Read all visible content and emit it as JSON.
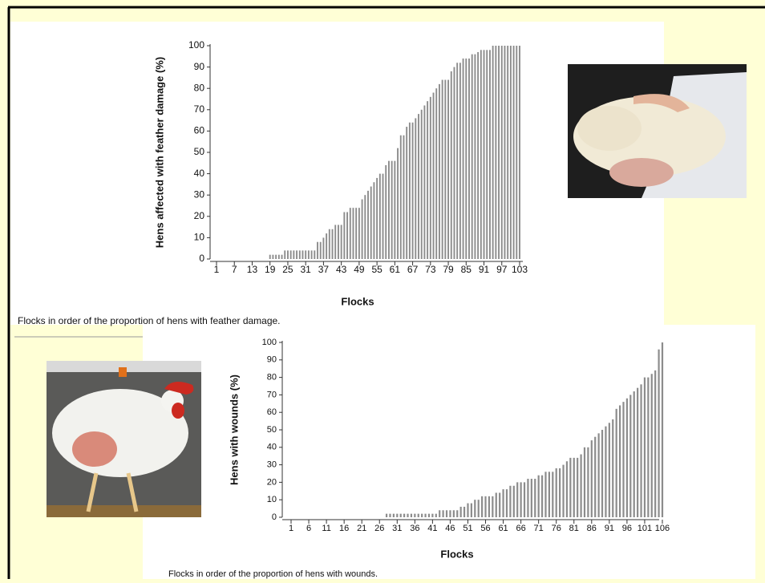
{
  "chart_data": [
    {
      "type": "bar",
      "ylabel": "Hens affected with feather damage (%)",
      "xlabel": "Flocks",
      "caption": "Flocks in order of the proportion of hens with feather damage.",
      "color": "#8c8c8c",
      "x": [
        1,
        2,
        3,
        4,
        5,
        6,
        7,
        8,
        9,
        10,
        11,
        12,
        13,
        14,
        15,
        16,
        17,
        18,
        19,
        20,
        21,
        22,
        23,
        24,
        25,
        26,
        27,
        28,
        29,
        30,
        31,
        32,
        33,
        34,
        35,
        36,
        37,
        38,
        39,
        40,
        41,
        42,
        43,
        44,
        45,
        46,
        47,
        48,
        49,
        50,
        51,
        52,
        53,
        54,
        55,
        56,
        57,
        58,
        59,
        60,
        61,
        62,
        63,
        64,
        65,
        66,
        67,
        68,
        69,
        70,
        71,
        72,
        73,
        74,
        75,
        76,
        77,
        78,
        79,
        80,
        81,
        82,
        83,
        84,
        85,
        86,
        87,
        88,
        89,
        90,
        91,
        92,
        93,
        94,
        95,
        96,
        97,
        98,
        99,
        100,
        101,
        102,
        103
      ],
      "values": [
        0,
        0,
        0,
        0,
        0,
        0,
        0,
        0,
        0,
        0,
        0,
        0,
        0,
        0,
        0,
        0,
        0,
        0,
        2,
        2,
        2,
        2,
        2,
        4,
        4,
        4,
        4,
        4,
        4,
        4,
        4,
        4,
        4,
        4,
        8,
        8,
        10,
        12,
        14,
        14,
        16,
        16,
        16,
        22,
        22,
        24,
        24,
        24,
        24,
        28,
        30,
        32,
        34,
        36,
        38,
        40,
        40,
        44,
        46,
        46,
        46,
        52,
        58,
        58,
        62,
        64,
        64,
        66,
        68,
        70,
        72,
        74,
        76,
        78,
        80,
        82,
        84,
        84,
        84,
        88,
        90,
        92,
        92,
        94,
        94,
        94,
        96,
        96,
        97,
        98,
        98,
        98,
        98,
        100,
        100,
        100,
        100,
        100,
        100,
        100,
        100,
        100,
        100
      ],
      "xlim": [
        0,
        104
      ],
      "xticks": [
        1,
        7,
        13,
        19,
        25,
        31,
        37,
        43,
        49,
        55,
        61,
        67,
        73,
        79,
        85,
        91,
        97,
        103
      ],
      "ylim": [
        0,
        100
      ],
      "yticks": [
        0,
        10,
        20,
        30,
        40,
        50,
        60,
        70,
        80,
        90,
        100
      ]
    },
    {
      "type": "bar",
      "ylabel": "Hens with wounds (%)",
      "xlabel": "Flocks",
      "caption": "Flocks in order of the proportion of hens with wounds.",
      "color": "#8c8c8c",
      "x": [
        1,
        2,
        3,
        4,
        5,
        6,
        7,
        8,
        9,
        10,
        11,
        12,
        13,
        14,
        15,
        16,
        17,
        18,
        19,
        20,
        21,
        22,
        23,
        24,
        25,
        26,
        27,
        28,
        29,
        30,
        31,
        32,
        33,
        34,
        35,
        36,
        37,
        38,
        39,
        40,
        41,
        42,
        43,
        44,
        45,
        46,
        47,
        48,
        49,
        50,
        51,
        52,
        53,
        54,
        55,
        56,
        57,
        58,
        59,
        60,
        61,
        62,
        63,
        64,
        65,
        66,
        67,
        68,
        69,
        70,
        71,
        72,
        73,
        74,
        75,
        76,
        77,
        78,
        79,
        80,
        81,
        82,
        83,
        84,
        85,
        86,
        87,
        88,
        89,
        90,
        91,
        92,
        93,
        94,
        95,
        96,
        97,
        98,
        99,
        100,
        101,
        102,
        103,
        104,
        105,
        106
      ],
      "values": [
        0,
        0,
        0,
        0,
        0,
        0,
        0,
        0,
        0,
        0,
        0,
        0,
        0,
        0,
        0,
        0,
        0,
        0,
        0,
        0,
        0,
        0,
        0,
        0,
        0,
        0,
        0,
        2,
        2,
        2,
        2,
        2,
        2,
        2,
        2,
        2,
        2,
        2,
        2,
        2,
        2,
        2,
        4,
        4,
        4,
        4,
        4,
        4,
        6,
        6,
        8,
        8,
        10,
        10,
        12,
        12,
        12,
        12,
        14,
        14,
        16,
        16,
        18,
        18,
        20,
        20,
        20,
        22,
        22,
        22,
        24,
        24,
        26,
        26,
        26,
        28,
        28,
        30,
        32,
        34,
        34,
        34,
        36,
        40,
        40,
        44,
        46,
        48,
        50,
        52,
        54,
        56,
        62,
        64,
        66,
        68,
        70,
        72,
        74,
        76,
        80,
        80,
        82,
        84,
        96,
        100
      ],
      "xlim": [
        0,
        107
      ],
      "xticks": [
        1,
        6,
        11,
        16,
        21,
        26,
        31,
        36,
        41,
        46,
        51,
        56,
        61,
        66,
        71,
        76,
        81,
        86,
        91,
        96,
        101,
        106
      ],
      "ylim": [
        0,
        100
      ],
      "yticks": [
        0,
        10,
        20,
        30,
        40,
        50,
        60,
        70,
        80,
        90,
        100
      ]
    }
  ]
}
